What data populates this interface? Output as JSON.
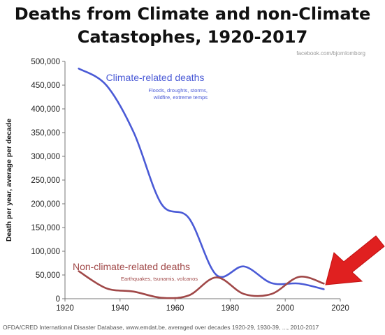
{
  "chart_data": {
    "type": "line",
    "title_lines": [
      "Deaths from Climate and non-Climate",
      "Catastophes, 1920-2017"
    ],
    "watermark": "facebook.com/bjornlomborg",
    "ylabel": "Death per year, average per decade",
    "xlabel": "",
    "xlim": [
      1920,
      2020
    ],
    "ylim": [
      0,
      500000
    ],
    "x_ticks": [
      "1920",
      "1940",
      "1960",
      "1980",
      "2000",
      "2020"
    ],
    "y_ticks": [
      "0",
      "50,000",
      "100,000",
      "150,000",
      "200,000",
      "250,000",
      "300,000",
      "350,000",
      "400,000",
      "450,000",
      "500,000"
    ],
    "grid": false,
    "series": [
      {
        "name": "Climate-related deaths",
        "note_lines": [
          "Floods, droughts, storms,",
          "wildfire, extreme temps"
        ],
        "color": "#4a5ad6",
        "x": [
          1925,
          1935,
          1945,
          1955,
          1965,
          1975,
          1985,
          1995,
          2005,
          2014
        ],
        "y": [
          485000,
          450000,
          350000,
          200000,
          170000,
          50000,
          68000,
          33000,
          32000,
          20000
        ]
      },
      {
        "name": "Non-climate-related deaths",
        "note_lines": [
          "Earthquakes, tsunamis, volcanos"
        ],
        "color": "#a04848",
        "x": [
          1925,
          1935,
          1945,
          1955,
          1965,
          1975,
          1985,
          1995,
          2005,
          2014
        ],
        "y": [
          58000,
          22000,
          15000,
          2000,
          7000,
          45000,
          10000,
          10000,
          46000,
          32000
        ]
      }
    ],
    "arrow_color": "#e02020"
  },
  "footer": {
    "source": "OFDA/CRED International Disaster Database, www.emdat.be, averaged over decades 1920-29, 1930-39, ..., 2010-2017"
  }
}
